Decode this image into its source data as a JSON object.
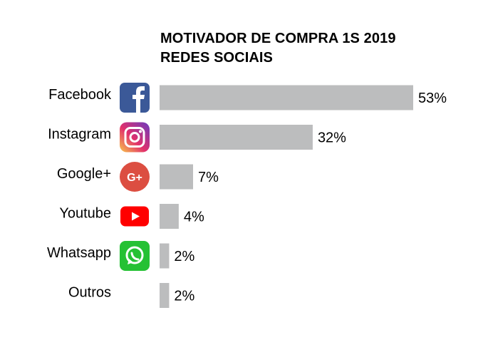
{
  "chart_data": {
    "type": "bar",
    "orientation": "horizontal",
    "title_lines": [
      "MOTIVADOR DE COMPRA 1S 2019",
      "REDES SOCIAIS"
    ],
    "categories": [
      "Facebook",
      "Instagram",
      "Google+",
      "Youtube",
      "Whatsapp",
      "Outros"
    ],
    "values": [
      53,
      32,
      7,
      4,
      2,
      2
    ],
    "value_labels": [
      "53%",
      "32%",
      "7%",
      "4%",
      "2%",
      "2%"
    ],
    "icons": [
      "facebook-icon",
      "instagram-icon",
      "google-plus-icon",
      "youtube-icon",
      "whatsapp-icon",
      ""
    ],
    "bar_color": "#bcbdbe",
    "xlim": [
      0,
      53
    ],
    "grid": false,
    "legend": "none"
  },
  "colors": {
    "facebook": "#3b5998",
    "google_plus": "#dc4e41",
    "youtube": "#ff0000",
    "whatsapp": "#25c134",
    "instagram_start": "#f9c64a",
    "instagram_mid": "#e1306c",
    "instagram_end": "#6a3bbf"
  }
}
